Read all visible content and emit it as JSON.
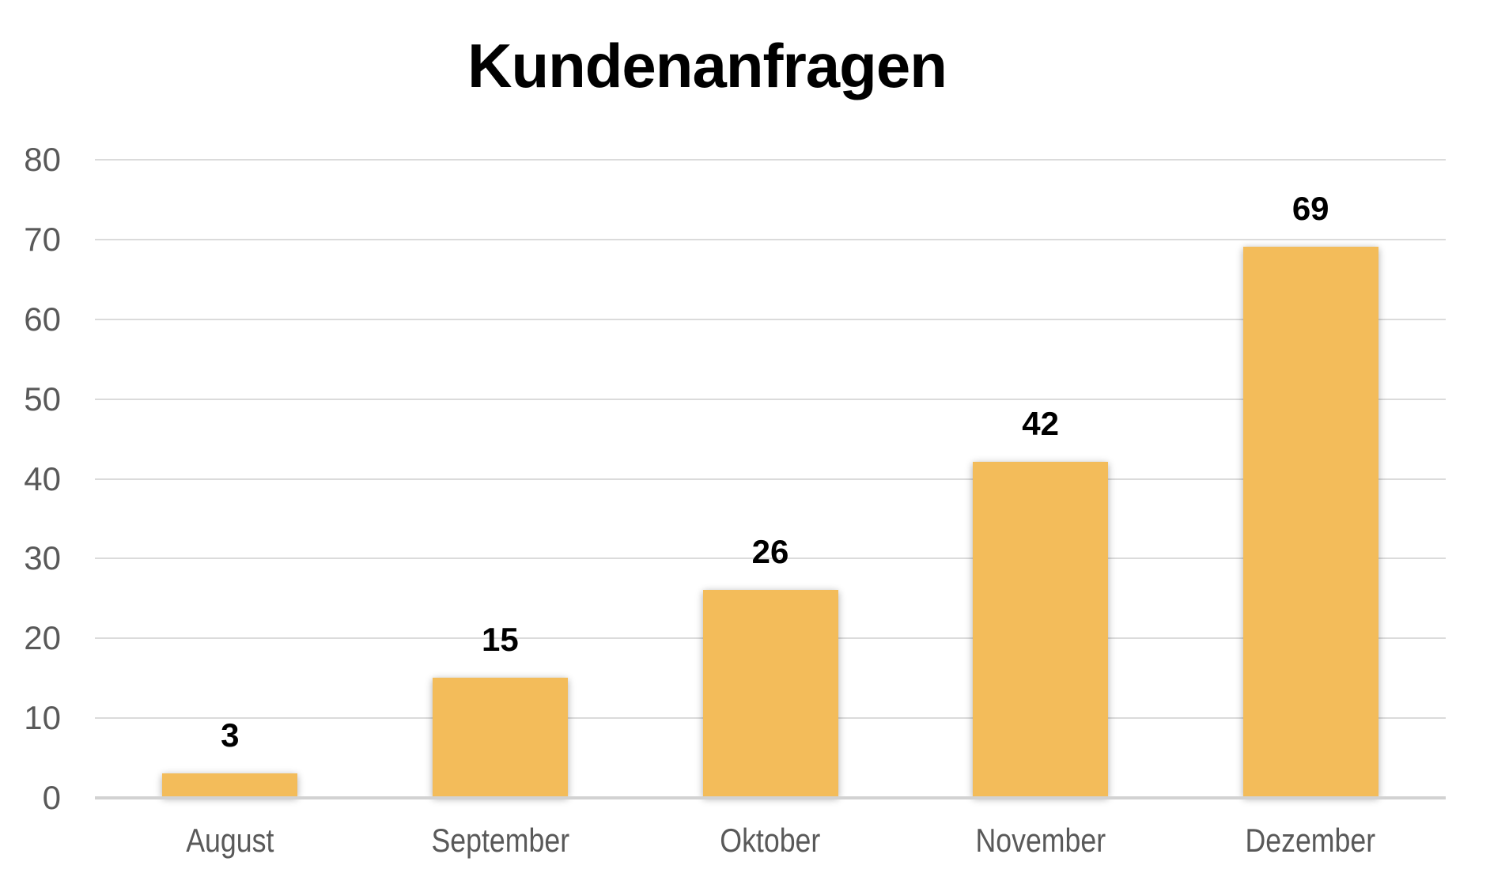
{
  "title": "Kundenanfragen",
  "chart_data": {
    "type": "bar",
    "title": "Kundenanfragen",
    "categories": [
      "August",
      "September",
      "Oktober",
      "November",
      "Dezember"
    ],
    "values": [
      3,
      15,
      26,
      42,
      69
    ],
    "data_labels": [
      "3",
      "15",
      "26",
      "42",
      "69"
    ],
    "xlabel": "",
    "ylabel": "",
    "ylim": [
      0,
      80
    ],
    "ytick_step": 10,
    "yticks_top_to_bottom": [
      "80",
      "70",
      "60",
      "50",
      "40",
      "30",
      "20",
      "10",
      "0"
    ],
    "grid": "horizontal",
    "legend": "none",
    "data_label_position": "outside-end",
    "colors": {
      "bar_fill": "#F3BC5A",
      "data_label": "#000000",
      "axis_text": "#595959",
      "gridline": "#DBDBDB",
      "axis_line": "#D2D2D2",
      "title_text": "#000000",
      "background": "#FFFFFF"
    }
  }
}
